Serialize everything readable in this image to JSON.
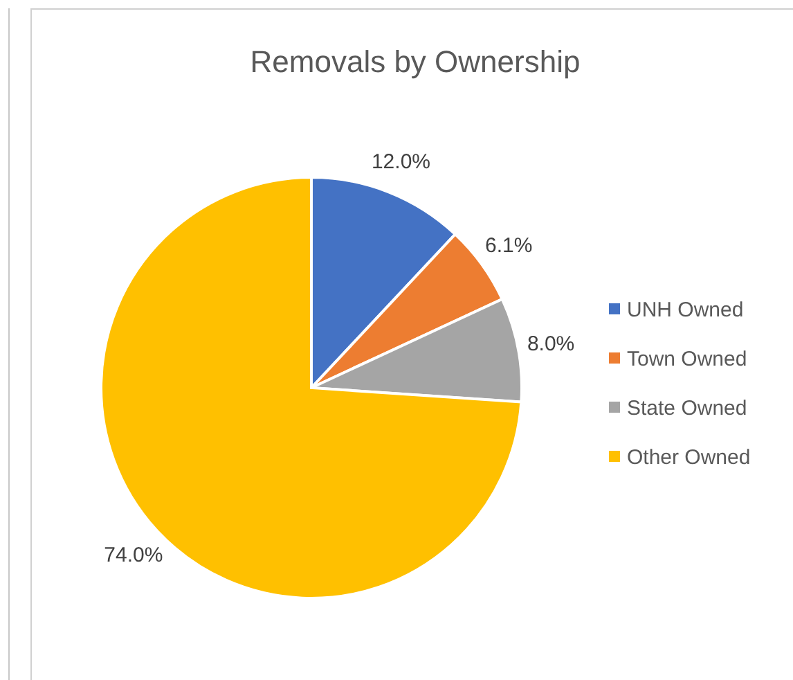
{
  "chart_data": {
    "type": "pie",
    "title": "Removals by Ownership",
    "categories": [
      "UNH Owned",
      "Town Owned",
      "State Owned",
      "Other Owned"
    ],
    "values": [
      12.0,
      6.1,
      8.0,
      74.0
    ],
    "value_labels": [
      "12.0%",
      "6.1%",
      "8.0%",
      "74.0%"
    ],
    "colors": [
      "#4472c4",
      "#ed7d31",
      "#a5a5a5",
      "#ffc000"
    ],
    "legend": "right"
  }
}
